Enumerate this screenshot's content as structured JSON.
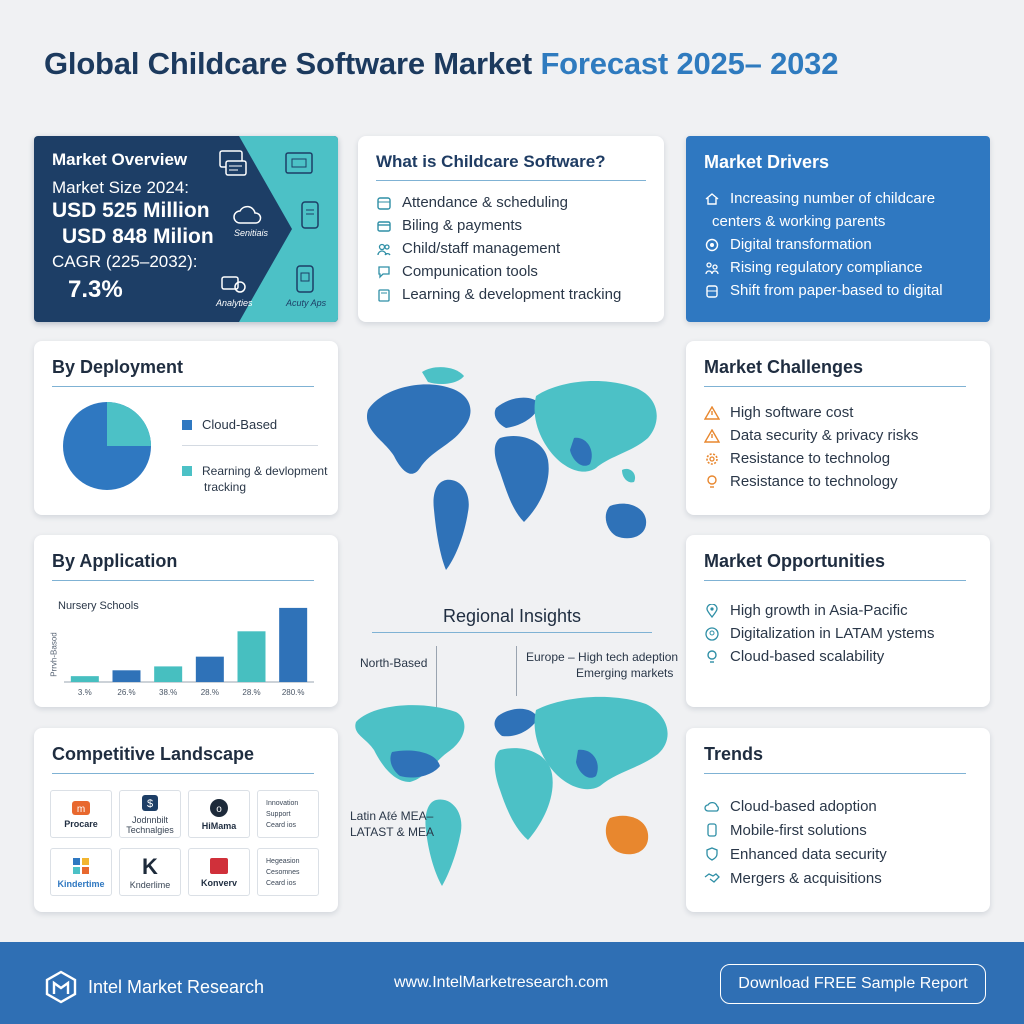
{
  "header": {
    "title_main": "Global Childcare Software Market",
    "title_accent": "Forecast 2025– 2032"
  },
  "overview": {
    "title": "Market Overview",
    "size_label": "Market Size 2024:",
    "size_value_1": "USD 525 Million",
    "size_value_2": "USD 848 Milion",
    "cagr_label": "CAGR (225–2032):",
    "cagr_value": "7.3%",
    "icon_labels": [
      "Senitiais",
      "Analyties",
      "Acuty Aps"
    ]
  },
  "what_is": {
    "title": "What is Childcare Software?",
    "items": [
      {
        "icon": "calendar-icon",
        "label": "Attendance & scheduling"
      },
      {
        "icon": "billing-icon",
        "label": "Biling & payments"
      },
      {
        "icon": "people-icon",
        "label": "Child/staff management"
      },
      {
        "icon": "chat-icon",
        "label": "Compunication tools"
      },
      {
        "icon": "book-icon",
        "label": "Learning & development tracking"
      }
    ]
  },
  "drivers": {
    "title": "Market Drivers",
    "items": [
      {
        "icon": "home-icon",
        "label": "Increasing number of childcare"
      },
      {
        "icon": "",
        "label": "centers & working parents"
      },
      {
        "icon": "digital-icon",
        "label": "Digital transformation"
      },
      {
        "icon": "compliance-icon",
        "label": "Rising regulatory compliance"
      },
      {
        "icon": "paper-icon",
        "label": "Shift from paper-based to digital"
      }
    ]
  },
  "deployment": {
    "title": "By Deployment",
    "legend": [
      "Cloud-Based",
      "Rearning & devlopment",
      "tracking"
    ]
  },
  "application": {
    "title": "By Application"
  },
  "chart_data": {
    "type": "bar",
    "title": "Nursery Schools",
    "ylabel": "Prrvh-Basod",
    "categories": [
      "3.%",
      "26.%",
      "38.%",
      "28.%",
      "28.%",
      "280.%"
    ],
    "values": [
      3,
      6,
      8,
      13,
      26,
      38
    ],
    "ylim": [
      0,
      40
    ],
    "grid": false,
    "colors": [
      "#47bfc0",
      "#2f72b8",
      "#47bfc0",
      "#2f72b8",
      "#47bfc0",
      "#2f72b8"
    ]
  },
  "competitive": {
    "title": "Competitive Landscape",
    "logos": [
      {
        "name": "Procare",
        "icon": "procare-icon"
      },
      {
        "name": "Jodnnbilt Technalgies",
        "icon": "dollar-icon"
      },
      {
        "name": "HiMama",
        "icon": "himama-icon"
      },
      {
        "name": "Kindertime",
        "icon": "kindertime-icon"
      },
      {
        "name": "Knderlime",
        "icon": "k-icon"
      },
      {
        "name": "Konverv",
        "icon": "konverv-icon"
      }
    ],
    "list_a": [
      "Innovation",
      "Support",
      "Ceard ios"
    ],
    "list_b": [
      "Hegeasion",
      "Cesomnes",
      "Ceard ios"
    ]
  },
  "regional": {
    "title": "Regional Insights",
    "north": "North-Based",
    "europe_1": "Europe – High tech adeption",
    "europe_2": "Emerging markets",
    "latam_1": "Latin Aℓé MEA–",
    "latam_2": "LATAST & MEA"
  },
  "challenges": {
    "title": "Market Challenges",
    "items": [
      {
        "icon": "warning-icon",
        "label": "High software cost"
      },
      {
        "icon": "warning-icon",
        "label": "Data security & privacy risks"
      },
      {
        "icon": "gear-icon",
        "label": "Resistance to technolog"
      },
      {
        "icon": "bulb-icon",
        "label": "Resistance to technology"
      }
    ]
  },
  "opportunities": {
    "title": "Market Opportunities",
    "items": [
      {
        "icon": "location-icon",
        "label": "High growth in Asia-Pacific"
      },
      {
        "icon": "person-icon",
        "label": "Digitalization in LATAM  ystems"
      },
      {
        "icon": "bulb-icon",
        "label": "Cloud-based scalability"
      }
    ]
  },
  "trends": {
    "title": "Trends",
    "items": [
      {
        "icon": "cloud-icon",
        "label": "Cloud-based adoption"
      },
      {
        "icon": "mobile-icon",
        "label": "Mobile-first solutions"
      },
      {
        "icon": "shield-icon",
        "label": "Enhanced data security"
      },
      {
        "icon": "handshake-icon",
        "label": "Mergers & acquisitions"
      }
    ]
  },
  "footer": {
    "brand": "Intel Market Research",
    "url": "www.IntelMarketresearch.com",
    "cta": "Download FREE Sample Report"
  },
  "colors": {
    "navy": "#1d3e66",
    "blue": "#2f78c1",
    "teal": "#47bfc0",
    "orange": "#e8872e"
  }
}
